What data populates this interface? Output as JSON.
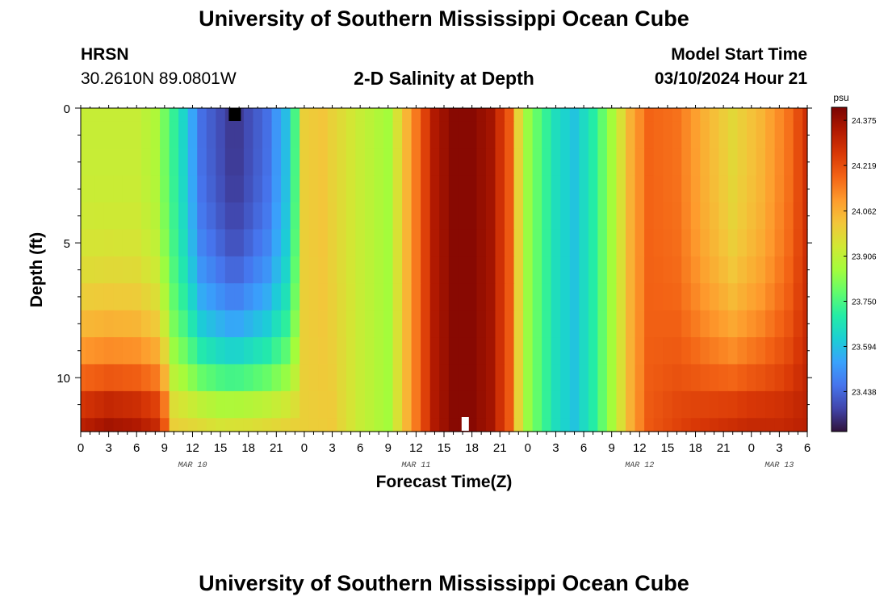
{
  "header": {
    "title": "University of Southern Mississippi Ocean Cube",
    "station": "HRSN",
    "coords": "30.2610N  89.0801W",
    "chart_title": "2-D Salinity at Depth",
    "start_label": "Model Start Time",
    "start_value": "03/10/2024 Hour 21"
  },
  "footer": {
    "title": "University of Southern Mississippi Ocean Cube"
  },
  "chart_data": {
    "type": "heatmap",
    "title": "2-D Salinity at Depth",
    "xlabel": "Forecast Time(Z)",
    "ylabel": "Depth (ft)",
    "x_unit": "hours since MAR 10 00Z",
    "x_range": [
      0,
      78
    ],
    "x_step": 1,
    "y_range": [
      0,
      12
    ],
    "depth_rows": [
      0,
      1,
      2,
      3,
      4,
      5,
      6,
      7,
      8,
      9,
      10,
      11,
      12
    ],
    "x_ticks": [
      {
        "x": 0,
        "label": "0"
      },
      {
        "x": 3,
        "label": "3"
      },
      {
        "x": 6,
        "label": "6"
      },
      {
        "x": 9,
        "label": "9"
      },
      {
        "x": 12,
        "label": "12"
      },
      {
        "x": 15,
        "label": "15"
      },
      {
        "x": 18,
        "label": "18"
      },
      {
        "x": 21,
        "label": "21"
      },
      {
        "x": 24,
        "label": "0"
      },
      {
        "x": 27,
        "label": "3"
      },
      {
        "x": 30,
        "label": "6"
      },
      {
        "x": 33,
        "label": "9"
      },
      {
        "x": 36,
        "label": "12"
      },
      {
        "x": 39,
        "label": "15"
      },
      {
        "x": 42,
        "label": "18"
      },
      {
        "x": 45,
        "label": "21"
      },
      {
        "x": 48,
        "label": "0"
      },
      {
        "x": 51,
        "label": "3"
      },
      {
        "x": 54,
        "label": "6"
      },
      {
        "x": 57,
        "label": "9"
      },
      {
        "x": 60,
        "label": "12"
      },
      {
        "x": 63,
        "label": "15"
      },
      {
        "x": 66,
        "label": "18"
      },
      {
        "x": 69,
        "label": "21"
      },
      {
        "x": 72,
        "label": "0"
      },
      {
        "x": 75,
        "label": "3"
      },
      {
        "x": 78,
        "label": "6"
      }
    ],
    "day_labels": [
      {
        "x": 12,
        "label": "MAR 10"
      },
      {
        "x": 36,
        "label": "MAR 11"
      },
      {
        "x": 60,
        "label": "MAR 12"
      },
      {
        "x": 75,
        "label": "MAR 13"
      }
    ],
    "y_ticks": [
      {
        "y": 0,
        "label": "0"
      },
      {
        "y": 5,
        "label": "5"
      },
      {
        "y": 10,
        "label": "10"
      }
    ],
    "y_minor_ticks": [
      1,
      2,
      3,
      4,
      6,
      7,
      8,
      9,
      11
    ],
    "colorbar": {
      "unit": "psu",
      "min": 23.3,
      "max": 24.42,
      "ticks": [
        "24.375",
        "24.219",
        "24.062",
        "23.906",
        "23.750",
        "23.594",
        "23.438"
      ]
    },
    "surface_profile": {
      "hours": [
        0,
        6,
        8,
        9.5,
        11,
        13,
        16.5,
        20,
        22.5,
        24,
        26,
        30,
        33,
        36,
        38,
        40,
        42,
        44,
        46,
        47.5,
        49,
        51,
        53,
        55,
        57,
        59,
        61,
        64,
        67,
        70,
        73,
        76,
        78
      ],
      "salinity": [
        23.92,
        23.92,
        23.88,
        23.76,
        23.64,
        23.45,
        23.35,
        23.45,
        23.62,
        24.0,
        24.02,
        23.92,
        23.86,
        24.15,
        24.34,
        24.4,
        24.4,
        24.36,
        24.2,
        23.88,
        23.78,
        23.66,
        23.6,
        23.7,
        23.86,
        24.06,
        24.18,
        24.16,
        24.06,
        23.98,
        24.05,
        24.16,
        24.28
      ]
    },
    "bottom_profile": {
      "hours": [
        0,
        3,
        6,
        8,
        9,
        10,
        12,
        15,
        18,
        21,
        24,
        27,
        30,
        33,
        36,
        38,
        40,
        42,
        44,
        46,
        47.5,
        49,
        51,
        53,
        55,
        57,
        59,
        61,
        64,
        66,
        69,
        72,
        75,
        78
      ],
      "salinity": [
        24.32,
        24.36,
        24.34,
        24.3,
        24.2,
        24.0,
        23.98,
        23.95,
        23.96,
        23.98,
        24.0,
        24.01,
        23.92,
        23.86,
        24.15,
        24.34,
        24.4,
        24.4,
        24.36,
        24.2,
        23.88,
        23.78,
        23.66,
        23.6,
        23.7,
        23.86,
        24.06,
        24.2,
        24.24,
        24.26,
        24.28,
        24.3,
        24.3,
        24.32
      ]
    },
    "markers": [
      {
        "name": "minimum-salinity-marker",
        "hour": 16.5,
        "depth": 0.0,
        "color": "#000000"
      },
      {
        "name": "maximum-salinity-marker",
        "hour": 41.5,
        "depth": 11.7,
        "color": "#ffffff"
      }
    ]
  },
  "colors": {
    "scale": [
      "#30123b",
      "#4145ab",
      "#4675ed",
      "#39a2fc",
      "#1bcfd4",
      "#24eca6",
      "#61fc6c",
      "#a4fc3b",
      "#d1e834",
      "#f3c63a",
      "#fe9b2d",
      "#f36315",
      "#d93806",
      "#b11901",
      "#7a0402"
    ]
  }
}
